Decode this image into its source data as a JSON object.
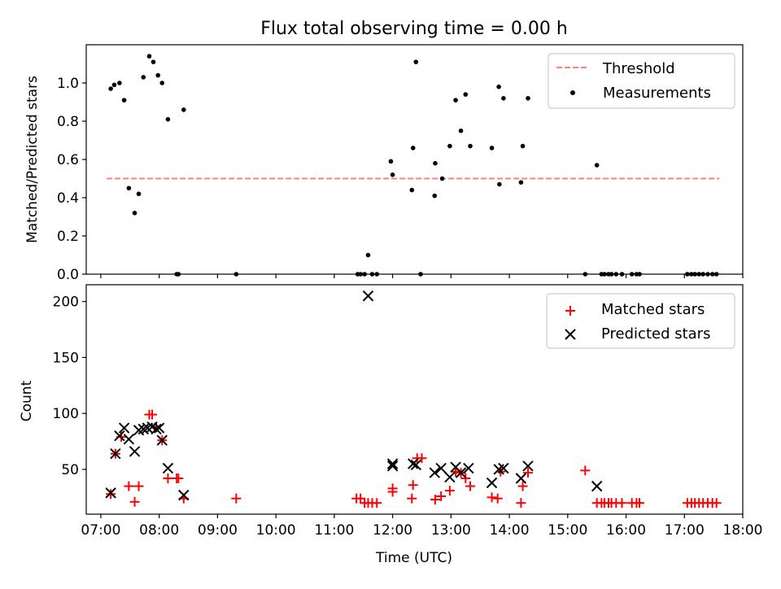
{
  "figure": {
    "title": "Flux total observing time = 0.00 h",
    "xlabel": "Time (UTC)",
    "xticks": [
      "07:00",
      "08:00",
      "09:00",
      "10:00",
      "11:00",
      "12:00",
      "13:00",
      "14:00",
      "15:00",
      "16:00",
      "17:00",
      "18:00"
    ]
  },
  "chart_data": [
    {
      "type": "scatter",
      "ylabel": "Matched/Predicted stars",
      "xlim": [
        6.75,
        18.0
      ],
      "ylim": [
        0.0,
        1.2
      ],
      "yticks": [
        "0.0",
        "0.2",
        "0.4",
        "0.6",
        "0.8",
        "1.0"
      ],
      "legend": {
        "placement": "upper-right",
        "entries": [
          "Threshold",
          "Measurements"
        ]
      },
      "series": [
        {
          "name": "Threshold",
          "style": "dashed-line",
          "color": "#ff7f7f",
          "x": [
            7.1,
            17.6
          ],
          "y": [
            0.5,
            0.5
          ]
        },
        {
          "name": "Measurements",
          "style": "dot",
          "color": "#000000",
          "x": [
            7.17,
            7.23,
            7.32,
            7.4,
            7.48,
            7.58,
            7.65,
            7.73,
            7.83,
            7.9,
            7.98,
            8.05,
            8.15,
            8.3,
            8.33,
            8.42,
            9.32,
            11.4,
            11.45,
            11.52,
            11.58,
            11.65,
            11.73,
            11.97,
            12.0,
            12.33,
            12.35,
            12.4,
            12.48,
            12.72,
            12.73,
            12.85,
            12.98,
            13.08,
            13.17,
            13.25,
            13.33,
            13.7,
            13.82,
            13.83,
            13.9,
            14.2,
            14.23,
            14.32,
            15.3,
            15.5,
            15.58,
            15.63,
            15.7,
            15.75,
            15.83,
            15.93,
            16.1,
            16.18,
            16.23,
            17.05,
            17.12,
            17.18,
            17.25,
            17.32,
            17.4,
            17.48,
            17.55
          ],
          "y": [
            0.97,
            0.99,
            1.0,
            0.91,
            0.45,
            0.32,
            0.42,
            1.03,
            1.14,
            1.11,
            1.04,
            1.0,
            0.81,
            0.0,
            0.0,
            0.86,
            0.0,
            0.0,
            0.0,
            0.0,
            0.1,
            0.0,
            0.0,
            0.59,
            0.52,
            0.44,
            0.66,
            1.11,
            0.0,
            0.41,
            0.58,
            0.5,
            0.67,
            0.91,
            0.75,
            0.94,
            0.67,
            0.66,
            0.98,
            0.47,
            0.92,
            0.48,
            0.67,
            0.92,
            0.0,
            0.57,
            0.0,
            0.0,
            0.0,
            0.0,
            0.0,
            0.0,
            0.0,
            0.0,
            0.0,
            0.0,
            0.0,
            0.0,
            0.0,
            0.0,
            0.0,
            0.0,
            0.0
          ]
        }
      ]
    },
    {
      "type": "scatter",
      "ylabel": "Count",
      "xlim": [
        6.75,
        18.0
      ],
      "ylim": [
        10,
        215
      ],
      "yticks": [
        "50",
        "100",
        "150",
        "200"
      ],
      "legend": {
        "placement": "upper-right",
        "entries": [
          "Matched stars",
          "Predicted stars"
        ]
      },
      "series": [
        {
          "name": "Matched stars",
          "style": "plus",
          "color": "#ff0000",
          "x": [
            7.17,
            7.25,
            7.35,
            7.48,
            7.58,
            7.65,
            7.83,
            7.88,
            7.95,
            8.05,
            8.15,
            8.3,
            8.33,
            8.42,
            9.32,
            11.38,
            11.45,
            11.52,
            11.58,
            11.65,
            11.73,
            12.0,
            12.0,
            12.33,
            12.35,
            12.42,
            12.5,
            12.73,
            12.83,
            12.98,
            13.08,
            13.17,
            13.25,
            13.33,
            13.7,
            13.8,
            13.85,
            14.2,
            14.23,
            14.32,
            15.3,
            15.5,
            15.58,
            15.63,
            15.7,
            15.75,
            15.83,
            15.93,
            16.1,
            16.18,
            16.23,
            17.05,
            17.12,
            17.18,
            17.25,
            17.32,
            17.4,
            17.48,
            17.55
          ],
          "y": [
            28,
            64,
            79,
            35,
            21,
            35,
            99,
            99,
            88,
            76,
            42,
            42,
            42,
            24,
            24,
            24,
            24,
            20,
            20,
            20,
            20,
            33,
            30,
            24,
            36,
            60,
            60,
            23,
            26,
            31,
            48,
            47,
            42,
            35,
            25,
            24,
            48,
            20,
            35,
            47,
            49,
            20,
            20,
            20,
            20,
            20,
            20,
            20,
            20,
            20,
            20,
            20,
            20,
            20,
            20,
            20,
            20,
            20,
            20
          ]
        },
        {
          "name": "Predicted stars",
          "style": "x",
          "color": "#000000",
          "x": [
            7.17,
            7.25,
            7.32,
            7.4,
            7.48,
            7.58,
            7.65,
            7.73,
            7.8,
            7.88,
            7.95,
            8.0,
            8.05,
            8.15,
            8.42,
            11.58,
            12.0,
            12.0,
            12.35,
            12.4,
            12.72,
            12.83,
            12.98,
            13.08,
            13.17,
            13.3,
            13.7,
            13.82,
            13.9,
            14.2,
            14.32,
            15.5
          ],
          "y": [
            29,
            64,
            80,
            87,
            77,
            66,
            85,
            86,
            87,
            88,
            86,
            87,
            76,
            51,
            27,
            205,
            55,
            53,
            55,
            54,
            47,
            51,
            43,
            52,
            47,
            51,
            38,
            50,
            51,
            42,
            53,
            35
          ]
        }
      ]
    }
  ]
}
